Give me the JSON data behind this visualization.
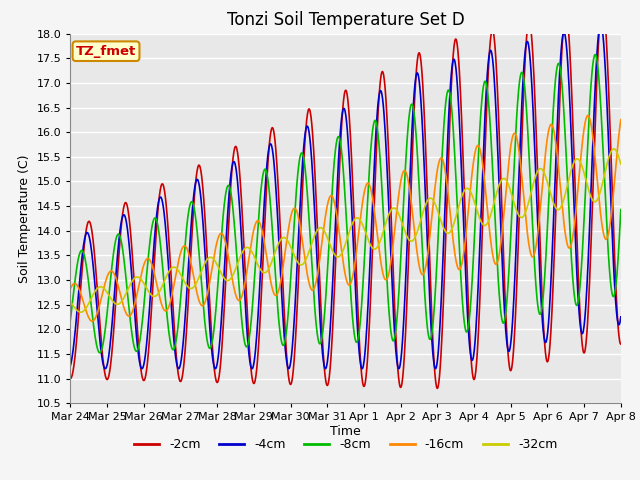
{
  "title": "Tonzi Soil Temperature Set D",
  "xlabel": "Time",
  "ylabel": "Soil Temperature (C)",
  "ylim": [
    10.5,
    18.0
  ],
  "yticks": [
    10.5,
    11.0,
    11.5,
    12.0,
    12.5,
    13.0,
    13.5,
    14.0,
    14.5,
    15.0,
    15.5,
    16.0,
    16.5,
    17.0,
    17.5,
    18.0
  ],
  "legend_labels": [
    "-2cm",
    "-4cm",
    "-8cm",
    "-16cm",
    "-32cm"
  ],
  "line_colors": [
    "#cc0000",
    "#0000cc",
    "#00bb00",
    "#ff8800",
    "#cccc00"
  ],
  "annotation_text": "TZ_fmet",
  "annotation_color": "#cc0000",
  "annotation_bg": "#ffffcc",
  "annotation_border": "#cc8800",
  "plot_bg": "#e8e8e8",
  "fig_bg": "#f5f5f5",
  "grid_color": "#ffffff",
  "title_fontsize": 12,
  "label_fontsize": 9,
  "tick_fontsize": 8,
  "legend_fontsize": 9,
  "n_points": 1440
}
